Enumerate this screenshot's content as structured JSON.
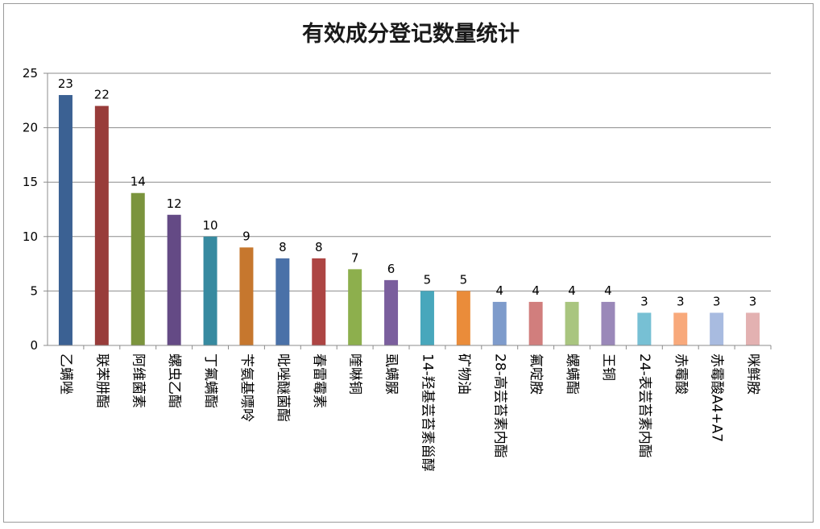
{
  "chart_data": {
    "type": "bar",
    "title": "有效成分登记数量统计",
    "xlabel": "",
    "ylabel": "",
    "ylim": [
      0,
      25
    ],
    "yticks": [
      "0",
      "5",
      "10",
      "15",
      "20",
      "25"
    ],
    "grid": true,
    "legend": "none",
    "categories": [
      "乙螨唑",
      "联苯肼酯",
      "阿维菌素",
      "螺虫乙酯",
      "丁氟螨酯",
      "苄氨基嘌呤",
      "吡唑醚菌酯",
      "春雷霉素",
      "喹啉铜",
      "虱螨脲",
      "14-羟基芸苔素甾醇",
      "矿物油",
      "28-高芸苔素内酯",
      "氟啶胺",
      "螺螨酯",
      "王铜",
      "24-表芸苔素内酯",
      "赤霉酸",
      "赤霉酸A4+A7",
      "咪鲜胺"
    ],
    "values": [
      23,
      22,
      14,
      12,
      10,
      9,
      8,
      8,
      7,
      6,
      5,
      5,
      4,
      4,
      4,
      4,
      3,
      3,
      3,
      3
    ],
    "colors": [
      "#3b6193",
      "#983c3a",
      "#7b943d",
      "#644a85",
      "#378aa0",
      "#c6772e",
      "#4a71a8",
      "#ad4543",
      "#8daf4d",
      "#7a5e9d",
      "#48a7bc",
      "#ea8c3a",
      "#7e9bcb",
      "#d17e7d",
      "#a9c57f",
      "#9a88b9",
      "#77c0d4",
      "#f8a97b",
      "#a8bbe0",
      "#e3b1b1"
    ]
  }
}
